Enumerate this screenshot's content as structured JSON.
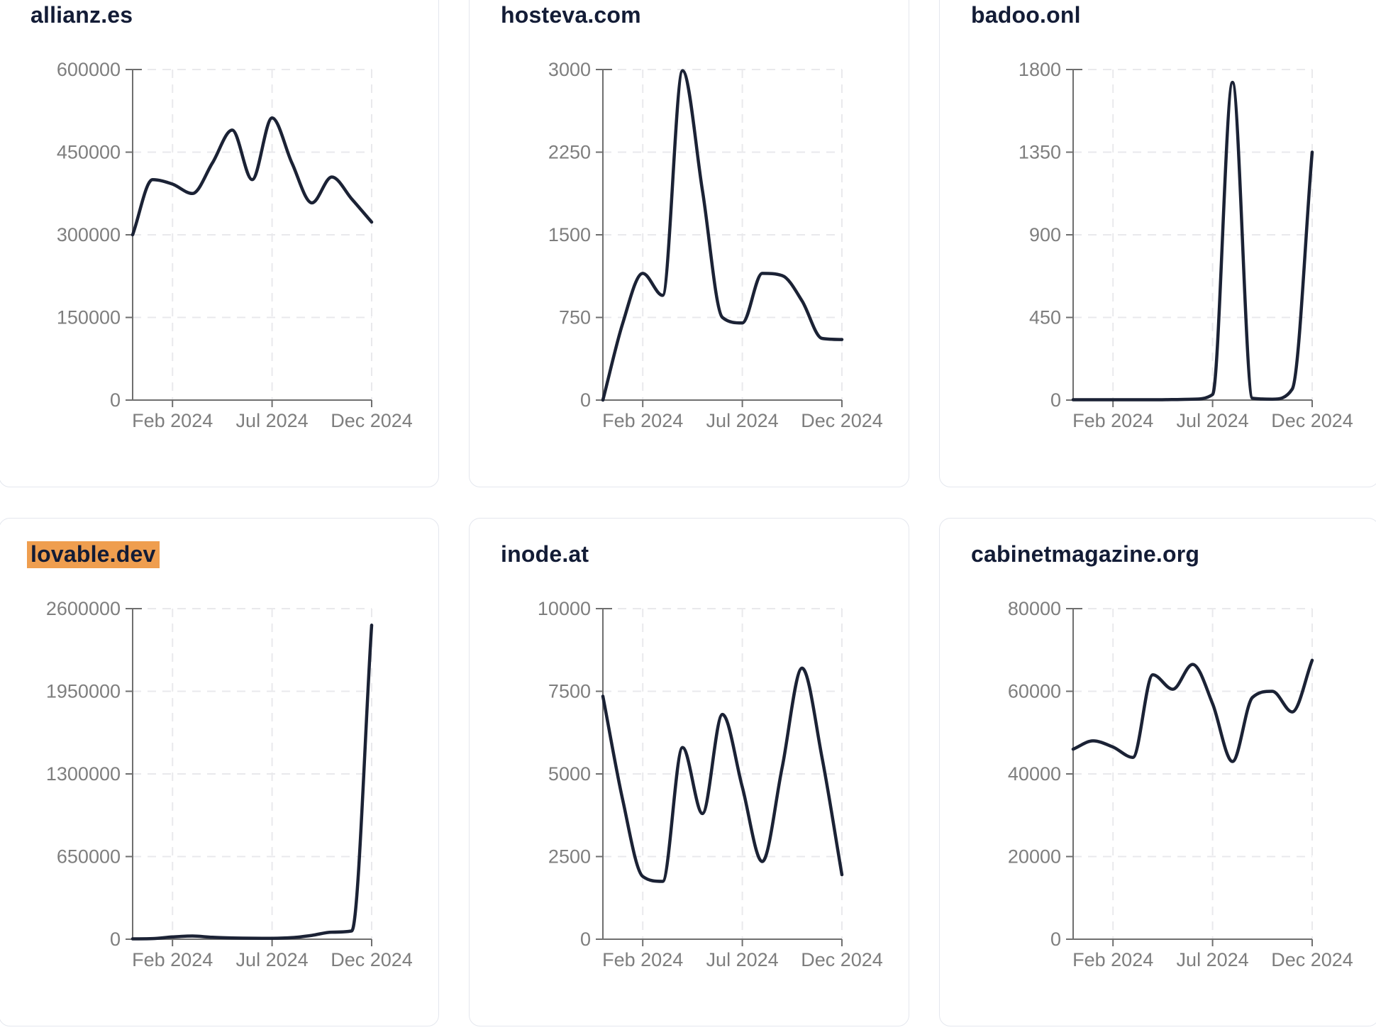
{
  "page": {
    "background": "#ffffff",
    "description_note": "grid of six domain traffic line charts"
  },
  "styles": {
    "line_color": "#1b2235",
    "title_color": "#131c36",
    "tick_color": "#7e7e7e",
    "axis_color": "#6f6f6f",
    "grid_color": "#e9e9ec",
    "card_border": "#e4e7ee",
    "highlight_color": "#ef9e4f"
  },
  "x_axis": {
    "tick_labels": [
      "Feb 2024",
      "Jul 2024",
      "Dec 2024"
    ],
    "tick_month_indices": [
      2,
      7,
      12
    ]
  },
  "chart_data": [
    {
      "type": "line",
      "title": "allianz.es",
      "highlighted": false,
      "x": [
        "Dec 2023",
        "Jan 2024",
        "Feb 2024",
        "Mar 2024",
        "Apr 2024",
        "May 2024",
        "Jun 2024",
        "Jul 2024",
        "Aug 2024",
        "Sep 2024",
        "Oct 2024",
        "Nov 2024",
        "Dec 2024"
      ],
      "values": [
        300000,
        400000,
        392000,
        375000,
        430000,
        490000,
        400000,
        512000,
        430000,
        358000,
        405000,
        365000,
        323000
      ],
      "ylim": [
        0,
        600000
      ],
      "yticks": [
        "0",
        "150000",
        "300000",
        "450000",
        "600000"
      ],
      "grid": true,
      "legend": null
    },
    {
      "type": "line",
      "title": "hosteva.com",
      "highlighted": false,
      "x": [
        "Dec 2023",
        "Jan 2024",
        "Feb 2024",
        "Mar 2024",
        "Apr 2024",
        "May 2024",
        "Jun 2024",
        "Jul 2024",
        "Aug 2024",
        "Sep 2024",
        "Oct 2024",
        "Nov 2024",
        "Dec 2024"
      ],
      "values": [
        0,
        700,
        1150,
        950,
        2990,
        1900,
        750,
        700,
        1150,
        1130,
        900,
        560,
        550
      ],
      "ylim": [
        0,
        3000
      ],
      "yticks": [
        "0",
        "750",
        "1500",
        "2250",
        "3000"
      ],
      "grid": true,
      "legend": null
    },
    {
      "type": "line",
      "title": "badoo.onl",
      "highlighted": false,
      "x": [
        "Dec 2023",
        "Jan 2024",
        "Feb 2024",
        "Mar 2024",
        "Apr 2024",
        "May 2024",
        "Jun 2024",
        "Jul 2024",
        "Aug 2024",
        "Sep 2024",
        "Oct 2024",
        "Nov 2024",
        "Dec 2024"
      ],
      "values": [
        2,
        2,
        2,
        2,
        2,
        3,
        5,
        30,
        1730,
        10,
        5,
        60,
        1350
      ],
      "ylim": [
        0,
        1800
      ],
      "yticks": [
        "0",
        "450",
        "900",
        "1350",
        "1800"
      ],
      "grid": true,
      "legend": null
    },
    {
      "type": "line",
      "title": "lovable.dev",
      "highlighted": true,
      "x": [
        "Dec 2023",
        "Jan 2024",
        "Feb 2024",
        "Mar 2024",
        "Apr 2024",
        "May 2024",
        "Jun 2024",
        "Jul 2024",
        "Aug 2024",
        "Sep 2024",
        "Oct 2024",
        "Nov 2024",
        "Dec 2024"
      ],
      "values": [
        3000,
        5000,
        18000,
        25000,
        15000,
        10000,
        8000,
        7000,
        12000,
        30000,
        55000,
        65000,
        2470000
      ],
      "ylim": [
        0,
        2600000
      ],
      "yticks": [
        "0",
        "650000",
        "1300000",
        "1950000",
        "2600000"
      ],
      "grid": true,
      "legend": null
    },
    {
      "type": "line",
      "title": "inode.at",
      "highlighted": false,
      "x": [
        "Dec 2023",
        "Jan 2024",
        "Feb 2024",
        "Mar 2024",
        "Apr 2024",
        "May 2024",
        "Jun 2024",
        "Jul 2024",
        "Aug 2024",
        "Sep 2024",
        "Oct 2024",
        "Nov 2024",
        "Dec 2024"
      ],
      "values": [
        7350,
        4200,
        1900,
        1750,
        5800,
        3800,
        6800,
        4600,
        2350,
        5200,
        8200,
        5500,
        1950
      ],
      "ylim": [
        0,
        10000
      ],
      "yticks": [
        "0",
        "2500",
        "5000",
        "7500",
        "10000"
      ],
      "grid": true,
      "legend": null
    },
    {
      "type": "line",
      "title": "cabinetmagazine.org",
      "highlighted": false,
      "x": [
        "Dec 2023",
        "Jan 2024",
        "Feb 2024",
        "Mar 2024",
        "Apr 2024",
        "May 2024",
        "Jun 2024",
        "Jul 2024",
        "Aug 2024",
        "Sep 2024",
        "Oct 2024",
        "Nov 2024",
        "Dec 2024"
      ],
      "values": [
        46000,
        48000,
        46500,
        44000,
        64000,
        60500,
        66500,
        57000,
        43000,
        58500,
        60000,
        55000,
        67500
      ],
      "ylim": [
        0,
        80000
      ],
      "yticks": [
        "0",
        "20000",
        "40000",
        "60000",
        "80000"
      ],
      "grid": true,
      "legend": null
    }
  ]
}
